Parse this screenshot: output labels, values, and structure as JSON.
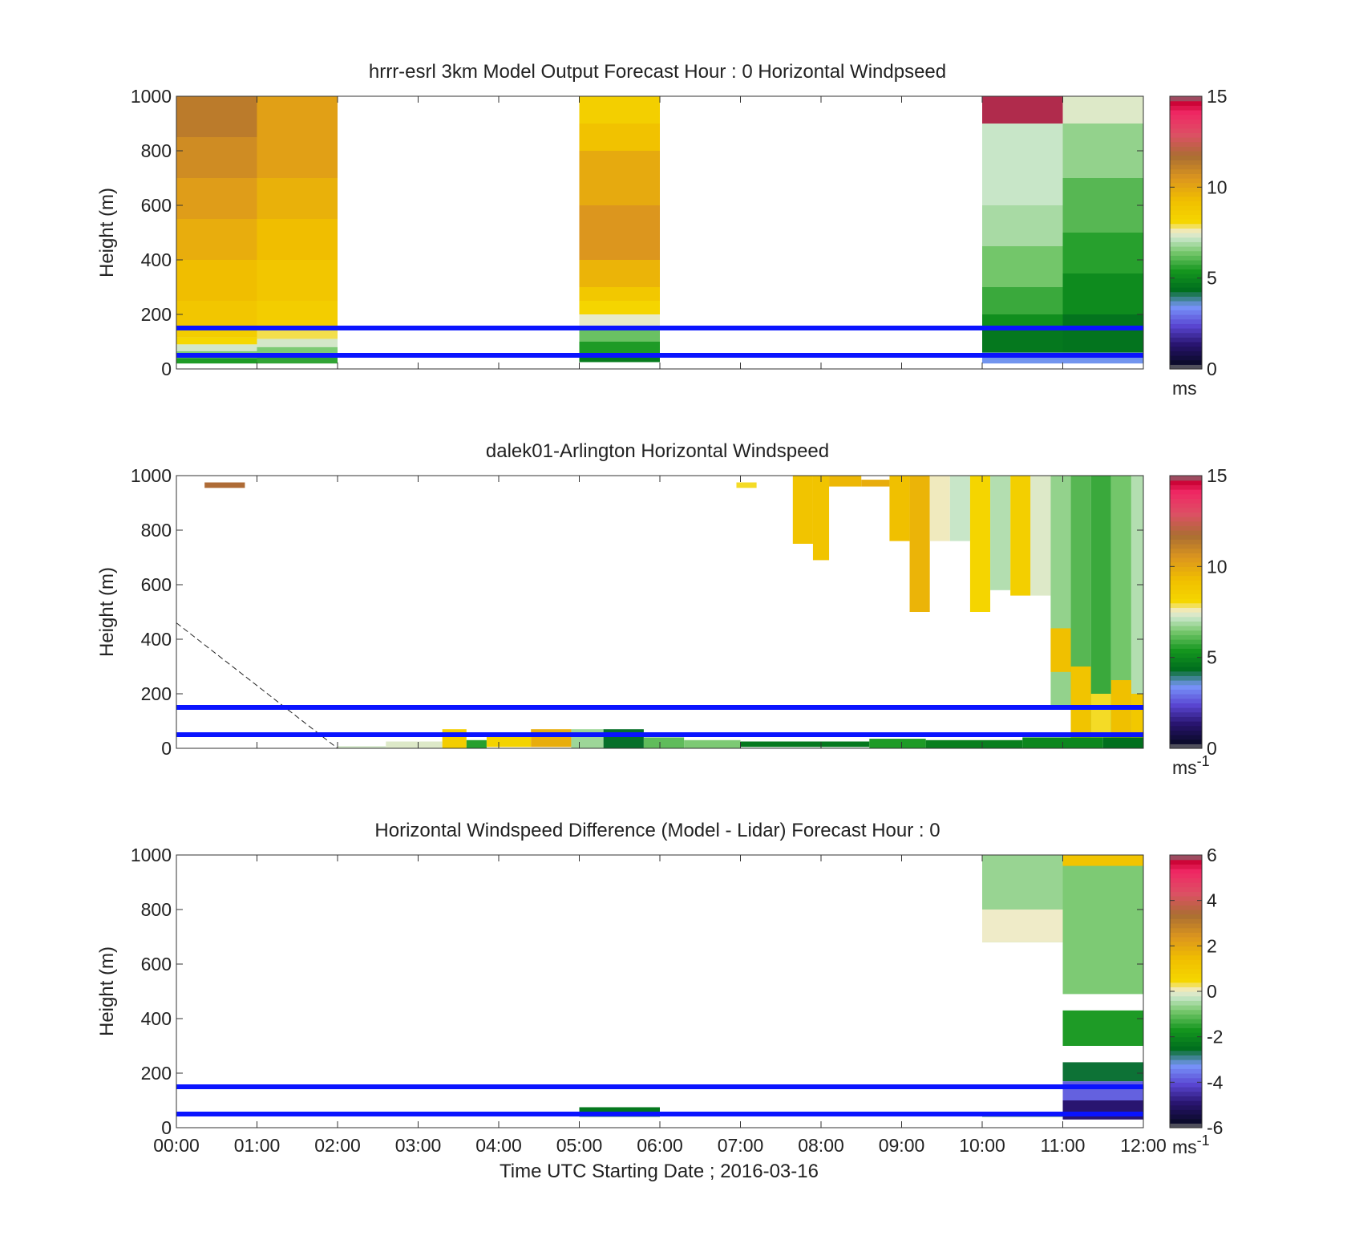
{
  "figure": {
    "xlabel": "Time UTC  Starting Date ; 2016-03-16"
  },
  "chart_data": [
    {
      "type": "heatmap",
      "title": "hrrr-esrl 3km Model Output   Forecast Hour : 0 Horizontal Windpseed",
      "ylabel": "Height (m)",
      "xlim_hours": [
        0,
        12
      ],
      "ylim": [
        0,
        1000
      ],
      "yticks": [
        "0",
        "200",
        "400",
        "600",
        "800",
        "1000"
      ],
      "xticks": [
        "00:00",
        "01:00",
        "02:00",
        "03:00",
        "04:00",
        "05:00",
        "06:00",
        "07:00",
        "08:00",
        "09:00",
        "10:00",
        "11:00",
        "12:00"
      ],
      "show_xtick_labels": false,
      "reference_heights_m": [
        150,
        50
      ],
      "colorbar": {
        "min": 0,
        "max": 15,
        "ticks": [
          "0",
          "5",
          "10",
          "15"
        ],
        "unit": "ms",
        "unit_sup": ""
      },
      "cells": [
        {
          "t0": 0,
          "t1": 1,
          "h0": 850,
          "h1": 1000,
          "v": 11.3
        },
        {
          "t0": 0,
          "t1": 1,
          "h0": 700,
          "h1": 850,
          "v": 10.8
        },
        {
          "t0": 0,
          "t1": 1,
          "h0": 550,
          "h1": 700,
          "v": 10.3
        },
        {
          "t0": 0,
          "t1": 1,
          "h0": 400,
          "h1": 550,
          "v": 9.8
        },
        {
          "t0": 0,
          "t1": 1,
          "h0": 250,
          "h1": 400,
          "v": 9.3
        },
        {
          "t0": 0,
          "t1": 1,
          "h0": 150,
          "h1": 250,
          "v": 8.9
        },
        {
          "t0": 0,
          "t1": 1,
          "h0": 115,
          "h1": 150,
          "v": 8.6
        },
        {
          "t0": 0,
          "t1": 1,
          "h0": 90,
          "h1": 115,
          "v": 8.1
        },
        {
          "t0": 0,
          "t1": 1,
          "h0": 65,
          "h1": 90,
          "v": 7.3
        },
        {
          "t0": 0,
          "t1": 1,
          "h0": 40,
          "h1": 65,
          "v": 6.5
        },
        {
          "t0": 0,
          "t1": 1,
          "h0": 20,
          "h1": 40,
          "v": 5.5
        },
        {
          "t0": 1,
          "t1": 2,
          "h0": 700,
          "h1": 1000,
          "v": 10.2
        },
        {
          "t0": 1,
          "t1": 2,
          "h0": 550,
          "h1": 700,
          "v": 9.7
        },
        {
          "t0": 1,
          "t1": 2,
          "h0": 400,
          "h1": 550,
          "v": 9.3
        },
        {
          "t0": 1,
          "t1": 2,
          "h0": 250,
          "h1": 400,
          "v": 8.9
        },
        {
          "t0": 1,
          "t1": 2,
          "h0": 150,
          "h1": 250,
          "v": 8.6
        },
        {
          "t0": 1,
          "t1": 2,
          "h0": 110,
          "h1": 150,
          "v": 7.9
        },
        {
          "t0": 1,
          "t1": 2,
          "h0": 80,
          "h1": 110,
          "v": 7.3
        },
        {
          "t0": 1,
          "t1": 2,
          "h0": 50,
          "h1": 80,
          "v": 6.5
        },
        {
          "t0": 1,
          "t1": 2,
          "h0": 20,
          "h1": 50,
          "v": 5.7
        },
        {
          "t0": 5,
          "t1": 6,
          "h0": 900,
          "h1": 1000,
          "v": 8.5
        },
        {
          "t0": 5,
          "t1": 6,
          "h0": 800,
          "h1": 900,
          "v": 9.1
        },
        {
          "t0": 5,
          "t1": 6,
          "h0": 600,
          "h1": 800,
          "v": 9.9
        },
        {
          "t0": 5,
          "t1": 6,
          "h0": 400,
          "h1": 600,
          "v": 10.5
        },
        {
          "t0": 5,
          "t1": 6,
          "h0": 300,
          "h1": 400,
          "v": 9.6
        },
        {
          "t0": 5,
          "t1": 6,
          "h0": 250,
          "h1": 300,
          "v": 8.8
        },
        {
          "t0": 5,
          "t1": 6,
          "h0": 200,
          "h1": 250,
          "v": 8.2
        },
        {
          "t0": 5,
          "t1": 6,
          "h0": 150,
          "h1": 200,
          "v": 7.5
        },
        {
          "t0": 5,
          "t1": 6,
          "h0": 100,
          "h1": 150,
          "v": 6.3
        },
        {
          "t0": 5,
          "t1": 6,
          "h0": 55,
          "h1": 100,
          "v": 5.5
        },
        {
          "t0": 5,
          "t1": 6,
          "h0": 25,
          "h1": 55,
          "v": 4.7
        },
        {
          "t0": 10,
          "t1": 11,
          "h0": 900,
          "h1": 1000,
          "v": 14.8
        },
        {
          "t0": 10,
          "t1": 11,
          "h0": 600,
          "h1": 900,
          "v": 7.2
        },
        {
          "t0": 10,
          "t1": 11,
          "h0": 450,
          "h1": 600,
          "v": 6.9
        },
        {
          "t0": 10,
          "t1": 11,
          "h0": 300,
          "h1": 450,
          "v": 6.4
        },
        {
          "t0": 10,
          "t1": 11,
          "h0": 200,
          "h1": 300,
          "v": 5.8
        },
        {
          "t0": 10,
          "t1": 11,
          "h0": 150,
          "h1": 200,
          "v": 5.2
        },
        {
          "t0": 10,
          "t1": 11,
          "h0": 60,
          "h1": 150,
          "v": 4.6
        },
        {
          "t0": 10,
          "t1": 11,
          "h0": 20,
          "h1": 60,
          "v": 3.5
        },
        {
          "t0": 11,
          "t1": 12,
          "h0": 900,
          "h1": 1000,
          "v": 7.4
        },
        {
          "t0": 11,
          "t1": 12,
          "h0": 700,
          "h1": 900,
          "v": 6.7
        },
        {
          "t0": 11,
          "t1": 12,
          "h0": 500,
          "h1": 700,
          "v": 6.1
        },
        {
          "t0": 11,
          "t1": 12,
          "h0": 350,
          "h1": 500,
          "v": 5.6
        },
        {
          "t0": 11,
          "t1": 12,
          "h0": 200,
          "h1": 350,
          "v": 5.1
        },
        {
          "t0": 11,
          "t1": 12,
          "h0": 60,
          "h1": 200,
          "v": 4.5
        },
        {
          "t0": 11,
          "t1": 12,
          "h0": 20,
          "h1": 60,
          "v": 3.5
        }
      ]
    },
    {
      "type": "heatmap",
      "title": "dalek01-Arlington  Horizontal Windspeed",
      "ylabel": "Height (m)",
      "xlim_hours": [
        0,
        12
      ],
      "ylim": [
        0,
        1000
      ],
      "yticks": [
        "0",
        "200",
        "400",
        "600",
        "800",
        "1000"
      ],
      "xticks": [
        "00:00",
        "01:00",
        "02:00",
        "03:00",
        "04:00",
        "05:00",
        "06:00",
        "07:00",
        "08:00",
        "09:00",
        "10:00",
        "11:00",
        "12:00"
      ],
      "show_xtick_labels": false,
      "reference_heights_m": [
        150,
        50
      ],
      "dashed_line": [
        [
          0,
          460
        ],
        [
          2,
          0
        ]
      ],
      "colorbar": {
        "min": 0,
        "max": 15,
        "ticks": [
          "0",
          "5",
          "10",
          "15"
        ],
        "unit": "ms",
        "unit_sup": "-1"
      },
      "cells": [
        {
          "t0": 0.35,
          "t1": 0.85,
          "h0": 955,
          "h1": 975,
          "v": 11.8
        },
        {
          "t0": 6.95,
          "t1": 7.2,
          "h0": 955,
          "h1": 975,
          "v": 8.0
        },
        {
          "t0": 7.65,
          "t1": 7.9,
          "h0": 750,
          "h1": 1000,
          "v": 9.0
        },
        {
          "t0": 7.9,
          "t1": 8.1,
          "h0": 690,
          "h1": 1000,
          "v": 9.0
        },
        {
          "t0": 8.1,
          "t1": 8.5,
          "h0": 960,
          "h1": 1000,
          "v": 9.5
        },
        {
          "t0": 8.5,
          "t1": 8.85,
          "h0": 960,
          "h1": 985,
          "v": 9.8
        },
        {
          "t0": 8.85,
          "t1": 9.1,
          "h0": 760,
          "h1": 1000,
          "v": 9.2
        },
        {
          "t0": 9.1,
          "t1": 9.35,
          "h0": 500,
          "h1": 1000,
          "v": 9.6
        },
        {
          "t0": 9.35,
          "t1": 9.6,
          "h0": 760,
          "h1": 1000,
          "v": 7.6
        },
        {
          "t0": 9.6,
          "t1": 9.85,
          "h0": 760,
          "h1": 1000,
          "v": 7.2
        },
        {
          "t0": 9.85,
          "t1": 10.1,
          "h0": 500,
          "h1": 1000,
          "v": 8.2
        },
        {
          "t0": 10.1,
          "t1": 10.35,
          "h0": 580,
          "h1": 1000,
          "v": 7.0
        },
        {
          "t0": 10.35,
          "t1": 10.6,
          "h0": 560,
          "h1": 1000,
          "v": 8.5
        },
        {
          "t0": 10.6,
          "t1": 10.85,
          "h0": 560,
          "h1": 1000,
          "v": 7.4
        },
        {
          "t0": 10.85,
          "t1": 11.1,
          "h0": 150,
          "h1": 1000,
          "v": 6.7
        },
        {
          "t0": 10.85,
          "t1": 11.1,
          "h0": 280,
          "h1": 440,
          "v": 9.2
        },
        {
          "t0": 11.1,
          "t1": 11.35,
          "h0": 40,
          "h1": 1000,
          "v": 6.1
        },
        {
          "t0": 11.1,
          "t1": 11.35,
          "h0": 40,
          "h1": 300,
          "v": 9.0
        },
        {
          "t0": 11.35,
          "t1": 11.6,
          "h0": 40,
          "h1": 1000,
          "v": 5.8
        },
        {
          "t0": 11.35,
          "t1": 11.6,
          "h0": 40,
          "h1": 200,
          "v": 8.0
        },
        {
          "t0": 11.6,
          "t1": 11.85,
          "h0": 40,
          "h1": 1000,
          "v": 6.4
        },
        {
          "t0": 11.6,
          "t1": 11.85,
          "h0": 40,
          "h1": 250,
          "v": 9.2
        },
        {
          "t0": 11.85,
          "t1": 12,
          "h0": 40,
          "h1": 1000,
          "v": 7.0
        },
        {
          "t0": 11.85,
          "t1": 12,
          "h0": 40,
          "h1": 200,
          "v": 8.8
        },
        {
          "t0": 2.0,
          "t1": 2.6,
          "h0": 0,
          "h1": 8,
          "v": 7.3
        },
        {
          "t0": 2.6,
          "t1": 3.3,
          "h0": 0,
          "h1": 25,
          "v": 7.4
        },
        {
          "t0": 3.3,
          "t1": 3.6,
          "h0": 0,
          "h1": 70,
          "v": 8.6
        },
        {
          "t0": 3.6,
          "t1": 3.85,
          "h0": 0,
          "h1": 30,
          "v": 5.6
        },
        {
          "t0": 3.85,
          "t1": 4.4,
          "h0": 5,
          "h1": 45,
          "v": 8.3
        },
        {
          "t0": 4.4,
          "t1": 4.9,
          "h0": 5,
          "h1": 70,
          "v": 9.8
        },
        {
          "t0": 4.9,
          "t1": 5.3,
          "h0": 0,
          "h1": 70,
          "v": 6.8
        },
        {
          "t0": 5.3,
          "t1": 5.8,
          "h0": 0,
          "h1": 70,
          "v": 4.3
        },
        {
          "t0": 5.8,
          "t1": 6.3,
          "h0": 0,
          "h1": 40,
          "v": 6.2
        },
        {
          "t0": 6.3,
          "t1": 7.0,
          "h0": 0,
          "h1": 30,
          "v": 6.5
        },
        {
          "t0": 7.0,
          "t1": 8.6,
          "h0": 5,
          "h1": 25,
          "v": 4.6
        },
        {
          "t0": 8.6,
          "t1": 9.3,
          "h0": 0,
          "h1": 35,
          "v": 5.5
        },
        {
          "t0": 9.3,
          "t1": 10.5,
          "h0": 0,
          "h1": 30,
          "v": 4.8
        },
        {
          "t0": 10.5,
          "t1": 11.5,
          "h0": 0,
          "h1": 40,
          "v": 5.0
        },
        {
          "t0": 11.5,
          "t1": 12,
          "h0": 0,
          "h1": 40,
          "v": 4.4
        }
      ]
    },
    {
      "type": "heatmap",
      "title": "Horizontal Windspeed Difference (Model - Lidar) Forecast Hour : 0",
      "ylabel": "Height (m)",
      "xlim_hours": [
        0,
        12
      ],
      "ylim": [
        0,
        1000
      ],
      "yticks": [
        "0",
        "200",
        "400",
        "600",
        "800",
        "1000"
      ],
      "xticks": [
        "00:00",
        "01:00",
        "02:00",
        "03:00",
        "04:00",
        "05:00",
        "06:00",
        "07:00",
        "08:00",
        "09:00",
        "10:00",
        "11:00",
        "12:00"
      ],
      "show_xtick_labels": true,
      "reference_heights_m": [
        150,
        50
      ],
      "colorbar": {
        "min": -6,
        "max": 6,
        "ticks": [
          "-6",
          "-4",
          "-2",
          "0",
          "2",
          "4",
          "6"
        ],
        "unit": "ms",
        "unit_sup": "-1"
      },
      "cells": [
        {
          "t0": 10,
          "t1": 11,
          "h0": 680,
          "h1": 1000,
          "v": -0.6
        },
        {
          "t0": 10,
          "t1": 11,
          "h0": 680,
          "h1": 800,
          "v": 0.05
        },
        {
          "t0": 10,
          "t1": 11,
          "h0": 40,
          "h1": 55,
          "v": -2.6
        },
        {
          "t0": 11,
          "t1": 12,
          "h0": 490,
          "h1": 1000,
          "v": -0.8
        },
        {
          "t0": 11,
          "t1": 12,
          "h0": 960,
          "h1": 1000,
          "v": 1.2
        },
        {
          "t0": 11,
          "t1": 12,
          "h0": 300,
          "h1": 430,
          "v": -1.6
        },
        {
          "t0": 11,
          "t1": 12,
          "h0": 170,
          "h1": 240,
          "v": -2.6
        },
        {
          "t0": 11,
          "t1": 12,
          "h0": 100,
          "h1": 170,
          "v": -3.8
        },
        {
          "t0": 11,
          "t1": 12,
          "h0": 30,
          "h1": 100,
          "v": -4.9
        },
        {
          "t0": 5,
          "t1": 6,
          "h0": 40,
          "h1": 75,
          "v": -2.3
        }
      ]
    }
  ]
}
